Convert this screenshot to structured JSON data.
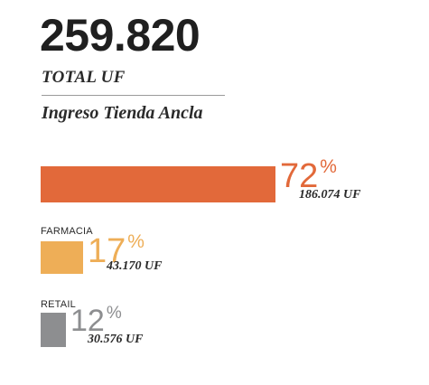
{
  "header": {
    "total_value": "259.820",
    "total_label": "TOTAL UF",
    "subtitle": "Ingreso Tienda Ancla"
  },
  "chart_data": {
    "type": "bar",
    "title": "Ingreso Tienda Ancla",
    "categories": [
      "",
      "FARMACIA",
      "RETAIL"
    ],
    "values": [
      72,
      17,
      12
    ],
    "value_labels": [
      "72",
      "17",
      "12"
    ],
    "percent_sign": "%",
    "uf_labels": [
      "186.074 UF",
      "43.170 UF",
      "30.576 UF"
    ],
    "colors": [
      "#e2693a",
      "#eeae57",
      "#8d8e90"
    ]
  }
}
